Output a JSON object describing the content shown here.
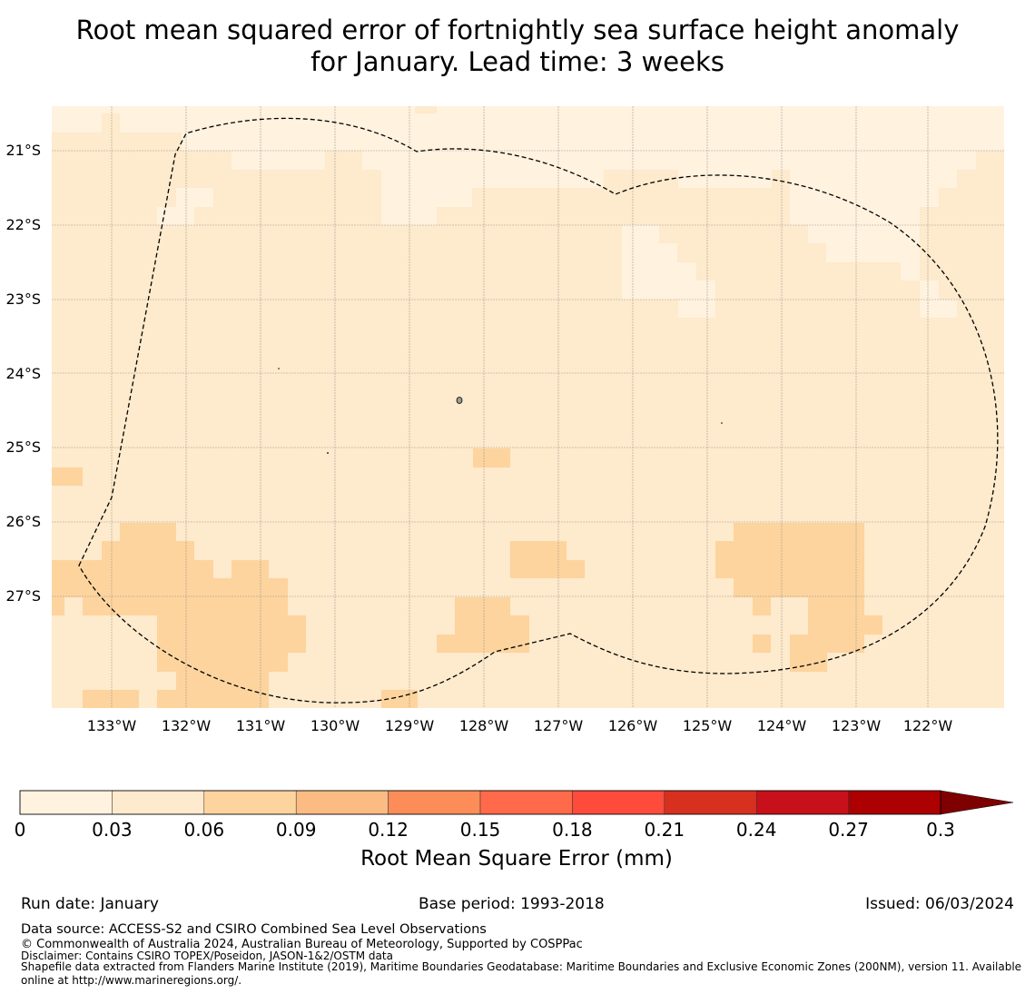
{
  "title": {
    "line1": "Root mean squared error of fortnightly sea surface height anomaly",
    "line2": "for January. Lead time: 3 weeks"
  },
  "map": {
    "lon_ticks": [
      "133°W",
      "132°W",
      "131°W",
      "130°W",
      "129°W",
      "128°W",
      "127°W",
      "126°W",
      "125°W",
      "124°W",
      "123°W",
      "122°W"
    ],
    "lat_ticks": [
      "21°S",
      "22°S",
      "23°S",
      "24°S",
      "25°S",
      "26°S",
      "27°S"
    ],
    "grid": "on",
    "boundary": "dashed exclusive economic zone outline"
  },
  "colorbar": {
    "label": "Root Mean Square Error (mm)",
    "ticks": [
      "0",
      "0.03",
      "0.06",
      "0.09",
      "0.12",
      "0.15",
      "0.18",
      "0.21",
      "0.24",
      "0.27",
      "0.3"
    ],
    "colors": [
      "#fff2df",
      "#feeacc",
      "#fdd49e",
      "#fdbb84",
      "#fc8d59",
      "#ff6a4a",
      "#ff4b3c",
      "#d7301f",
      "#c8101a",
      "#ad0000"
    ],
    "extend_color": "#7f0000"
  },
  "footer": {
    "run_date": "Run date: January",
    "base_period": "Base period: 1993-2018",
    "issued": "Issued: 06/03/2024",
    "data_source": "Data source: ACCESS-S2 and CSIRO Combined Sea Level Observations",
    "copyright": "© Commonwealth of Australia 2024, Australian Bureau of Meteorology, Supported by COSPPac",
    "disclaimer": "Disclaimer: Contains CSIRO TOPEX/Poseidon, JASON-1&2/OSTM data",
    "shapefile1": "Shapefile data extracted from Flanders Marine Institute (2019), Maritime Boundaries Geodatabase: Maritime Boundaries and Exclusive Economic Zones (200NM), version 11. Available",
    "shapefile2": "online at http://www.marineregions.org/."
  }
}
